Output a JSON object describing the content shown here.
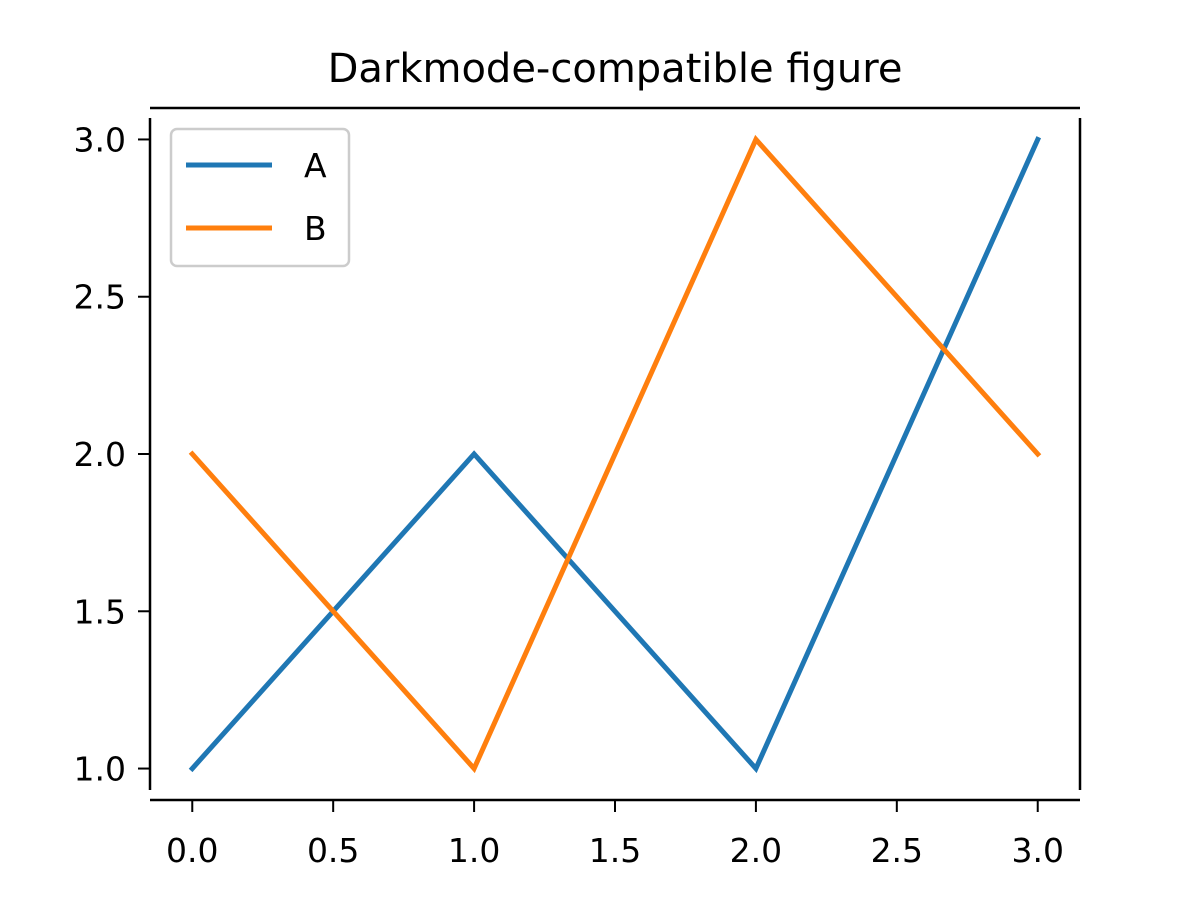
{
  "colors": {
    "background": "#ffffff",
    "axis": "#000000",
    "legend_border": "#cccccc"
  },
  "chart_data": {
    "type": "line",
    "title": "Darkmode-compatible figure",
    "xlabel": "",
    "ylabel": "",
    "xlim": [
      -0.15,
      3.15
    ],
    "ylim": [
      0.9,
      3.1
    ],
    "xticks": [
      0.0,
      0.5,
      1.0,
      1.5,
      2.0,
      2.5,
      3.0
    ],
    "xtick_labels": [
      "0.0",
      "0.5",
      "1.0",
      "1.5",
      "2.0",
      "2.5",
      "3.0"
    ],
    "yticks": [
      1.0,
      1.5,
      2.0,
      2.5,
      3.0
    ],
    "ytick_labels": [
      "1.0",
      "1.5",
      "2.0",
      "2.5",
      "3.0"
    ],
    "x": [
      0,
      1,
      2,
      3
    ],
    "series": [
      {
        "name": "A",
        "values": [
          1,
          2,
          1,
          3
        ],
        "color": "#1f77b4"
      },
      {
        "name": "B",
        "values": [
          2,
          1,
          3,
          2
        ],
        "color": "#ff7f0e"
      }
    ],
    "grid": false,
    "legend_position": "upper-left",
    "spines": "left-bottom-offset"
  }
}
